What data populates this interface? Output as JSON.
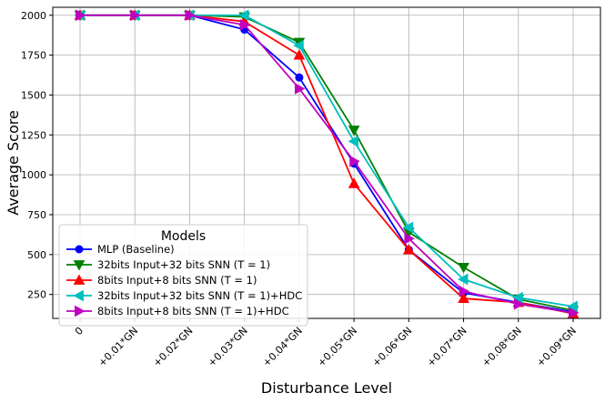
{
  "chart_data": {
    "type": "line",
    "title": "",
    "xlabel": "Disturbance Level",
    "ylabel": "Average Score",
    "categories": [
      "0",
      "+0.01*GN",
      "+0.02*GN",
      "+0.03*GN",
      "+0.04*GN",
      "+0.05*GN",
      "+0.06*GN",
      "+0.07*GN",
      "+0.08*GN",
      "+0.09*GN"
    ],
    "ylim": [
      100,
      2050
    ],
    "yticks": [
      250,
      500,
      750,
      1000,
      1250,
      1500,
      1750,
      2000
    ],
    "grid": true,
    "legend": {
      "title": "Models",
      "position": "lower-left"
    },
    "series": [
      {
        "name": "MLP (Baseline)",
        "color": "#0000ff",
        "marker": "circle",
        "values": [
          2000,
          2000,
          2000,
          1910,
          1610,
          1070,
          530,
          260,
          200,
          140
        ]
      },
      {
        "name": "32bits Input+32 bits SNN (T = 1)",
        "color": "#007f00",
        "marker": "triangle-down",
        "values": [
          2000,
          2000,
          2000,
          1990,
          1830,
          1280,
          640,
          420,
          220,
          150
        ]
      },
      {
        "name": "8bits Input+8 bits SNN (T = 1)",
        "color": "#ff0000",
        "marker": "triangle-up",
        "values": [
          2000,
          2000,
          2000,
          1960,
          1750,
          945,
          530,
          225,
          200,
          130
        ]
      },
      {
        "name": "32bits Input+32 bits SNN (T = 1)+HDC",
        "color": "#00bfbf",
        "marker": "triangle-left",
        "values": [
          2000,
          2000,
          2000,
          2000,
          1810,
          1210,
          670,
          345,
          230,
          175
        ]
      },
      {
        "name": "8bits Input+8 bits SNN (T = 1)+HDC",
        "color": "#bf00bf",
        "marker": "triangle-right",
        "values": [
          2000,
          2000,
          2000,
          1940,
          1540,
          1085,
          600,
          270,
          190,
          135
        ]
      }
    ]
  }
}
